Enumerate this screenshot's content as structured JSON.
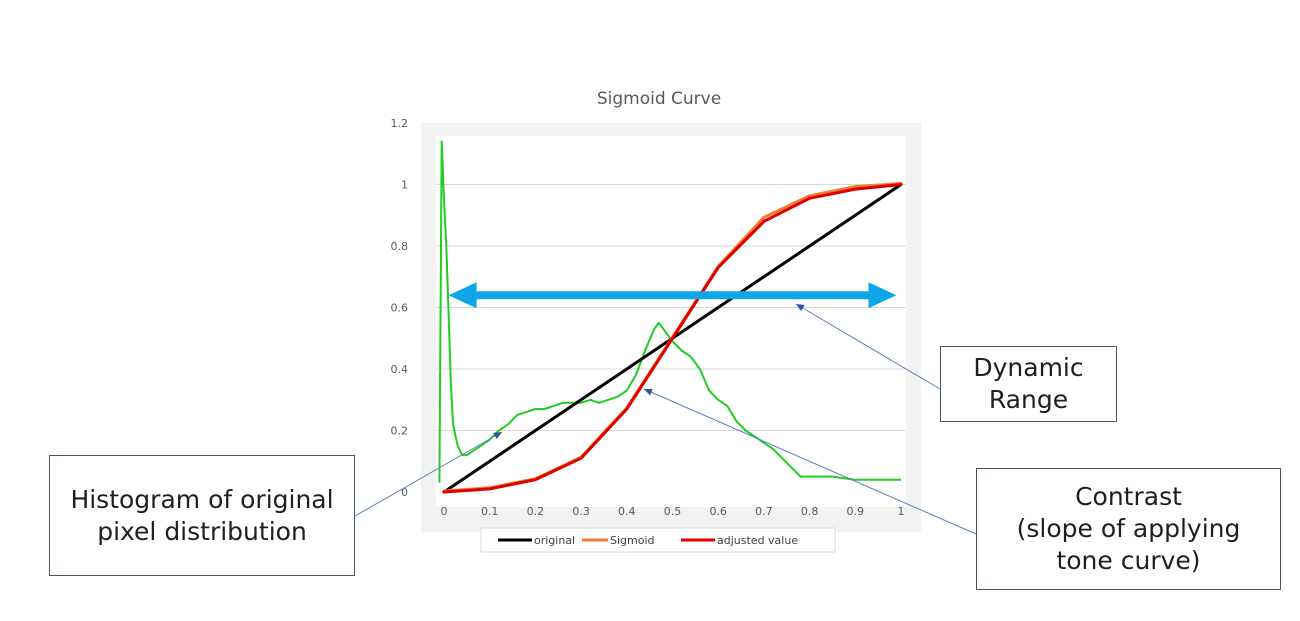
{
  "chart_data": {
    "type": "line",
    "title": "Sigmoid Curve",
    "xlabel": "",
    "ylabel": "",
    "xlim": [
      0,
      1
    ],
    "ylim": [
      0,
      1.2
    ],
    "x_ticks": [
      "0",
      "0.1",
      "0.2",
      "0.3",
      "0.4",
      "0.5",
      "0.6",
      "0.7",
      "0.8",
      "0.9",
      "1"
    ],
    "y_ticks": [
      "0",
      "0.2",
      "0.4",
      "0.6",
      "0.8",
      "1",
      "1.2"
    ],
    "grid": "horizontal",
    "legend_position": "bottom",
    "series": [
      {
        "name": "original",
        "color": "#000000",
        "x": [
          0,
          1
        ],
        "y": [
          0,
          1
        ]
      },
      {
        "name": "Sigmoid",
        "color": "#ed7d31",
        "x": [
          0,
          0.1,
          0.2,
          0.3,
          0.4,
          0.5,
          0.6,
          0.7,
          0.8,
          0.9,
          1
        ],
        "y": [
          0,
          0.01,
          0.04,
          0.11,
          0.27,
          0.5,
          0.73,
          0.89,
          0.96,
          0.99,
          1
        ]
      },
      {
        "name": "adjusted value",
        "color": "#e00000",
        "x": [
          0,
          0.1,
          0.2,
          0.3,
          0.4,
          0.5,
          0.6,
          0.7,
          0.8,
          0.9,
          1
        ],
        "y": [
          0,
          0.01,
          0.04,
          0.11,
          0.27,
          0.5,
          0.73,
          0.88,
          0.955,
          0.985,
          1
        ]
      }
    ],
    "histogram": {
      "color": "#22cc22",
      "x": [
        -0.01,
        -0.005,
        0,
        0.005,
        0.01,
        0.015,
        0.02,
        0.03,
        0.04,
        0.05,
        0.06,
        0.08,
        0.1,
        0.12,
        0.14,
        0.16,
        0.18,
        0.2,
        0.22,
        0.24,
        0.26,
        0.28,
        0.3,
        0.32,
        0.34,
        0.36,
        0.38,
        0.4,
        0.42,
        0.44,
        0.46,
        0.47,
        0.48,
        0.5,
        0.52,
        0.54,
        0.56,
        0.58,
        0.6,
        0.62,
        0.64,
        0.66,
        0.68,
        0.7,
        0.72,
        0.74,
        0.76,
        0.78,
        0.8,
        0.85,
        0.9,
        0.95,
        1
      ],
      "y": [
        0.03,
        1.14,
        0.95,
        0.8,
        0.58,
        0.35,
        0.22,
        0.15,
        0.12,
        0.12,
        0.13,
        0.15,
        0.17,
        0.2,
        0.22,
        0.25,
        0.26,
        0.27,
        0.27,
        0.28,
        0.29,
        0.29,
        0.29,
        0.3,
        0.29,
        0.3,
        0.31,
        0.33,
        0.38,
        0.46,
        0.53,
        0.55,
        0.53,
        0.49,
        0.46,
        0.44,
        0.4,
        0.33,
        0.3,
        0.28,
        0.23,
        0.2,
        0.18,
        0.16,
        0.14,
        0.11,
        0.08,
        0.05,
        0.05,
        0.05,
        0.04,
        0.04,
        0.04
      ]
    },
    "dynamic_range_arrow": {
      "x_start": 0.01,
      "x_end": 0.99,
      "y": 0.64,
      "color": "#0ea5e9"
    }
  },
  "annotations": {
    "dynamic_range": {
      "lines": [
        "Dynamic",
        "Range"
      ]
    },
    "histogram": {
      "lines": [
        "Histogram of original",
        "pixel distribution"
      ]
    },
    "contrast": {
      "lines": [
        "Contrast",
        "(slope of applying",
        "tone curve)"
      ]
    }
  }
}
